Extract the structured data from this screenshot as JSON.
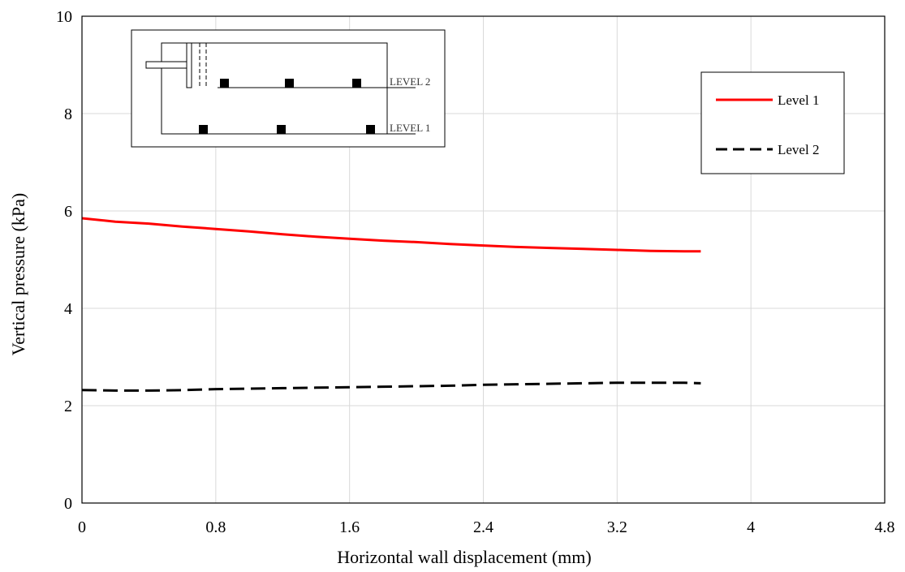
{
  "chart_data": {
    "type": "line",
    "title": "",
    "xlabel": "Horizontal wall displacement (mm)",
    "ylabel": "Vertical pressure (kPa)",
    "xlim": [
      0,
      4.8
    ],
    "ylim": [
      0,
      10
    ],
    "xticks": [
      "0",
      "0.8",
      "1.6",
      "2.4",
      "3.2",
      "4",
      "4.8"
    ],
    "yticks": [
      "0",
      "2",
      "4",
      "6",
      "8",
      "10"
    ],
    "grid": true,
    "legend_position": "top-right",
    "series": [
      {
        "name": "Level 1",
        "color": "#ff0000",
        "style": "solid",
        "x": [
          0,
          0.2,
          0.4,
          0.6,
          0.8,
          1.0,
          1.2,
          1.4,
          1.6,
          1.8,
          2.0,
          2.2,
          2.4,
          2.6,
          2.8,
          3.0,
          3.2,
          3.4,
          3.6,
          3.7
        ],
        "y": [
          5.85,
          5.78,
          5.74,
          5.68,
          5.63,
          5.58,
          5.52,
          5.47,
          5.43,
          5.39,
          5.36,
          5.32,
          5.29,
          5.26,
          5.24,
          5.22,
          5.2,
          5.18,
          5.17,
          5.17
        ]
      },
      {
        "name": "Level 2",
        "color": "#000000",
        "style": "dashed",
        "x": [
          0,
          0.2,
          0.4,
          0.6,
          0.8,
          1.0,
          1.2,
          1.4,
          1.6,
          1.8,
          2.0,
          2.2,
          2.4,
          2.6,
          2.8,
          3.0,
          3.2,
          3.4,
          3.6,
          3.7
        ],
        "y": [
          2.32,
          2.31,
          2.31,
          2.32,
          2.34,
          2.35,
          2.36,
          2.37,
          2.38,
          2.39,
          2.4,
          2.41,
          2.43,
          2.44,
          2.45,
          2.46,
          2.47,
          2.47,
          2.47,
          2.46
        ]
      }
    ],
    "inset": {
      "labels": [
        "LEVEL 2",
        "LEVEL 1"
      ]
    }
  }
}
